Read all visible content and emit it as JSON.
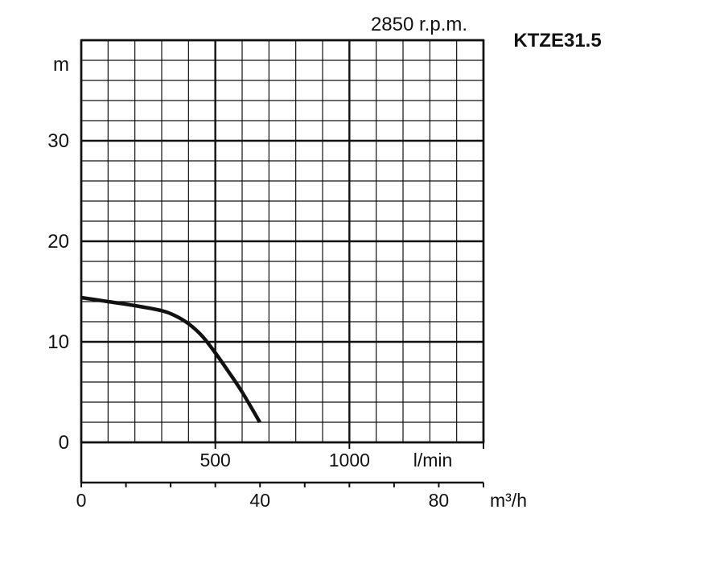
{
  "chart_data": {
    "type": "line",
    "title": "KTZE31.5",
    "speed_label": "2850 r.p.m.",
    "ylabel": "m",
    "ylim": [
      0,
      40
    ],
    "yticks": [
      0,
      10,
      20,
      30
    ],
    "x_flow_label": "l/min",
    "x_flow_lim": [
      0,
      1500
    ],
    "x_flow_ticks": [
      500,
      1000
    ],
    "x_m3h_label": "m³/h",
    "x_m3h_lim": [
      0,
      90
    ],
    "x_m3h_ticks": [
      0,
      40,
      80
    ],
    "grid": true,
    "series": [
      {
        "x_lmin": [
          0,
          100,
          200,
          300,
          350,
          400,
          450,
          500,
          550,
          600,
          666
        ],
        "y_m": [
          14.4,
          14.0,
          13.6,
          13.1,
          12.6,
          11.8,
          10.6,
          8.9,
          7.0,
          5.0,
          2.0
        ]
      }
    ],
    "colors": {
      "curve": "#111111",
      "grid": "#111111"
    }
  }
}
